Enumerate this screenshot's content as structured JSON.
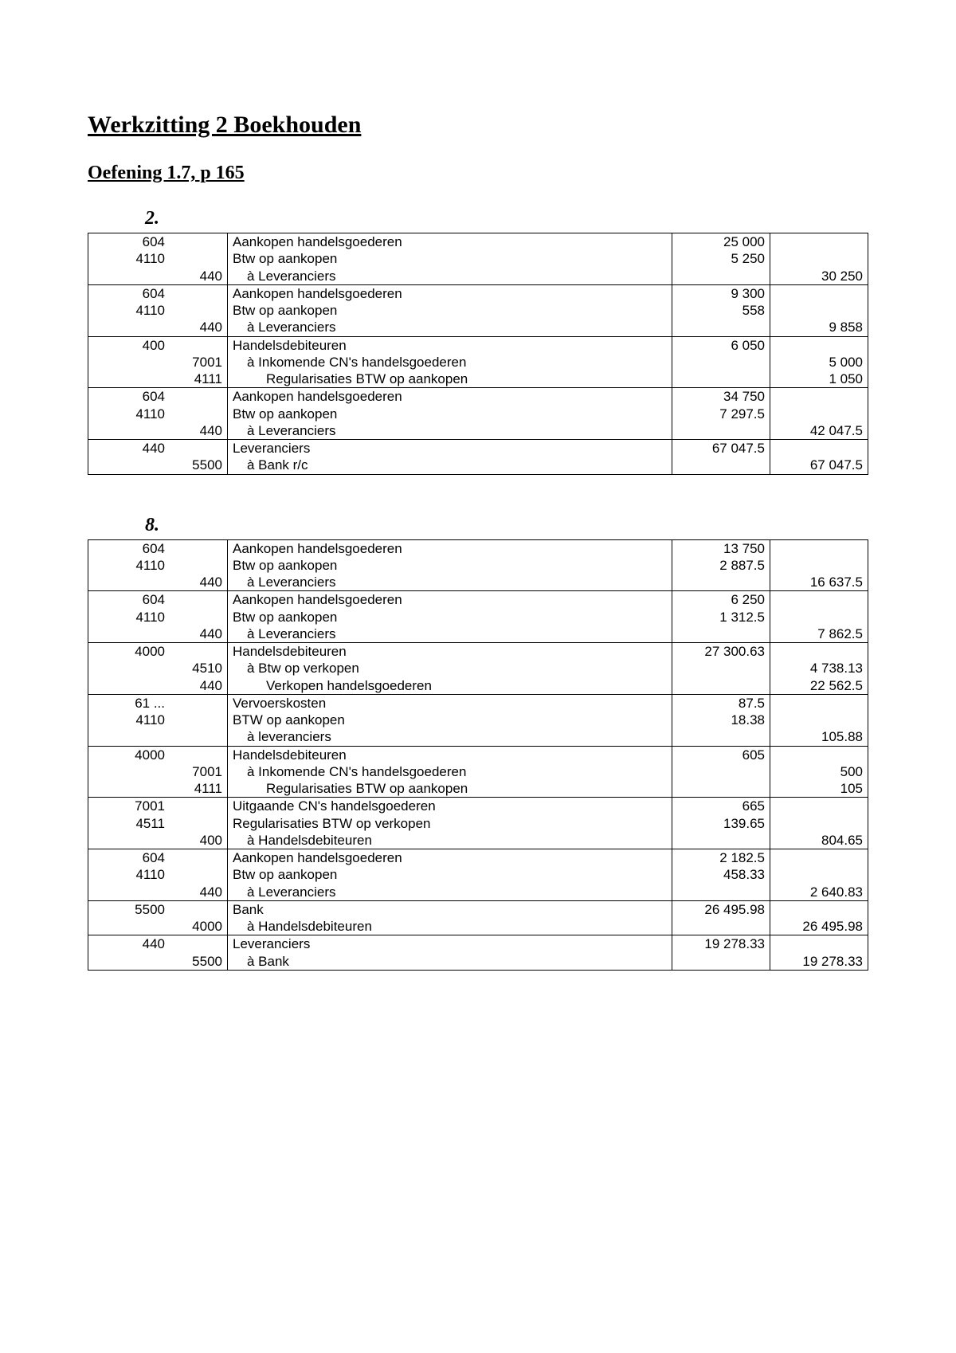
{
  "title": "Werkzitting 2 Boekhouden",
  "subtitle": "Oefening 1.7,  p 165",
  "sections": [
    {
      "num": "2.",
      "entries": [
        [
          {
            "debit": "604",
            "credit": "",
            "desc": "Aankopen handelsgoederen",
            "indent": 0,
            "damt": "25 000",
            "camt": ""
          },
          {
            "debit": "4110",
            "credit": "",
            "desc": "Btw op aankopen",
            "indent": 0,
            "damt": "5 250",
            "camt": ""
          },
          {
            "debit": "",
            "credit": "440",
            "desc": "à Leveranciers",
            "indent": 1,
            "damt": "",
            "camt": "30 250"
          }
        ],
        [
          {
            "debit": "604",
            "credit": "",
            "desc": "Aankopen handelsgoederen",
            "indent": 0,
            "damt": "9 300",
            "camt": ""
          },
          {
            "debit": "4110",
            "credit": "",
            "desc": "Btw op aankopen",
            "indent": 0,
            "damt": "558",
            "camt": ""
          },
          {
            "debit": "",
            "credit": "440",
            "desc": "à Leveranciers",
            "indent": 1,
            "damt": "",
            "camt": "9 858"
          }
        ],
        [
          {
            "debit": "400",
            "credit": "",
            "desc": "Handelsdebiteuren",
            "indent": 0,
            "damt": "6 050",
            "camt": ""
          },
          {
            "debit": "",
            "credit": "7001",
            "desc": "à Inkomende CN's handelsgoederen",
            "indent": 1,
            "damt": "",
            "camt": "5 000"
          },
          {
            "debit": "",
            "credit": "4111",
            "desc": "Regularisaties BTW op aankopen",
            "indent": 2,
            "damt": "",
            "camt": "1 050"
          }
        ],
        [
          {
            "debit": "604",
            "credit": "",
            "desc": "Aankopen handelsgoederen",
            "indent": 0,
            "damt": "34 750",
            "camt": ""
          },
          {
            "debit": "4110",
            "credit": "",
            "desc": "Btw op aankopen",
            "indent": 0,
            "damt": "7 297.5",
            "camt": ""
          },
          {
            "debit": "",
            "credit": "440",
            "desc": "à Leveranciers",
            "indent": 1,
            "damt": "",
            "camt": "42 047.5"
          }
        ],
        [
          {
            "debit": "440",
            "credit": "",
            "desc": "Leveranciers",
            "indent": 0,
            "damt": "67 047.5",
            "camt": ""
          },
          {
            "debit": "",
            "credit": "5500",
            "desc": "à Bank r/c",
            "indent": 1,
            "damt": "",
            "camt": "67 047.5"
          }
        ]
      ]
    },
    {
      "num": "8.",
      "entries": [
        [
          {
            "debit": "604",
            "credit": "",
            "desc": "Aankopen handelsgoederen",
            "indent": 0,
            "damt": "13 750",
            "camt": ""
          },
          {
            "debit": "4110",
            "credit": "",
            "desc": "Btw op aankopen",
            "indent": 0,
            "damt": "2 887.5",
            "camt": ""
          },
          {
            "debit": "",
            "credit": "440",
            "desc": "à Leveranciers",
            "indent": 1,
            "damt": "",
            "camt": "16 637.5"
          }
        ],
        [
          {
            "debit": "604",
            "credit": "",
            "desc": "Aankopen handelsgoederen",
            "indent": 0,
            "damt": "6 250",
            "camt": ""
          },
          {
            "debit": "4110",
            "credit": "",
            "desc": "Btw op aankopen",
            "indent": 0,
            "damt": "1 312.5",
            "camt": ""
          },
          {
            "debit": "",
            "credit": "440",
            "desc": "à Leveranciers",
            "indent": 1,
            "damt": "",
            "camt": "7 862.5"
          }
        ],
        [
          {
            "debit": "4000",
            "credit": "",
            "desc": "Handelsdebiteuren",
            "indent": 0,
            "damt": "27 300.63",
            "camt": ""
          },
          {
            "debit": "",
            "credit": "4510",
            "desc": "à Btw op verkopen",
            "indent": 1,
            "damt": "",
            "camt": "4 738.13"
          },
          {
            "debit": "",
            "credit": "440",
            "desc": "Verkopen handelsgoederen",
            "indent": 2,
            "damt": "",
            "camt": "22 562.5"
          }
        ],
        [
          {
            "debit": "61 ...",
            "credit": "",
            "desc": "Vervoerskosten",
            "indent": 0,
            "damt": "87.5",
            "camt": ""
          },
          {
            "debit": "4110",
            "credit": "",
            "desc": "BTW op aankopen",
            "indent": 0,
            "damt": "18.38",
            "camt": ""
          },
          {
            "debit": "",
            "credit": "",
            "desc": "à leveranciers",
            "indent": 1,
            "damt": "",
            "camt": "105.88"
          }
        ],
        [
          {
            "debit": "4000",
            "credit": "",
            "desc": "Handelsdebiteuren",
            "indent": 0,
            "damt": "605",
            "camt": ""
          },
          {
            "debit": "",
            "credit": "7001",
            "desc": "à Inkomende CN's handelsgoederen",
            "indent": 1,
            "damt": "",
            "camt": "500"
          },
          {
            "debit": "",
            "credit": "4111",
            "desc": "Regularisaties BTW op aankopen",
            "indent": 2,
            "damt": "",
            "camt": "105"
          }
        ],
        [
          {
            "debit": "7001",
            "credit": "",
            "desc": "Uitgaande CN's handelsgoederen",
            "indent": 0,
            "damt": "665",
            "camt": ""
          },
          {
            "debit": "4511",
            "credit": "",
            "desc": "Regularisaties BTW op verkopen",
            "indent": 0,
            "damt": "139.65",
            "camt": ""
          },
          {
            "debit": "",
            "credit": "400",
            "desc": "à Handelsdebiteuren",
            "indent": 1,
            "damt": "",
            "camt": "804.65"
          }
        ],
        [
          {
            "debit": "604",
            "credit": "",
            "desc": "Aankopen handelsgoederen",
            "indent": 0,
            "damt": "2 182.5",
            "camt": ""
          },
          {
            "debit": "4110",
            "credit": "",
            "desc": "Btw op aankopen",
            "indent": 0,
            "damt": "458.33",
            "camt": ""
          },
          {
            "debit": "",
            "credit": "440",
            "desc": "à Leveranciers",
            "indent": 1,
            "damt": "",
            "camt": "2 640.83"
          }
        ],
        [
          {
            "debit": "5500",
            "credit": "",
            "desc": "Bank",
            "indent": 0,
            "damt": "26 495.98",
            "camt": ""
          },
          {
            "debit": "",
            "credit": "4000",
            "desc": "à Handelsdebiteuren",
            "indent": 1,
            "damt": "",
            "camt": "26 495.98"
          }
        ],
        [
          {
            "debit": "440",
            "credit": "",
            "desc": "Leveranciers",
            "indent": 0,
            "damt": "19 278.33",
            "camt": ""
          },
          {
            "debit": "",
            "credit": "5500",
            "desc": "à Bank",
            "indent": 1,
            "damt": "",
            "camt": "19 278.33"
          }
        ]
      ]
    }
  ]
}
